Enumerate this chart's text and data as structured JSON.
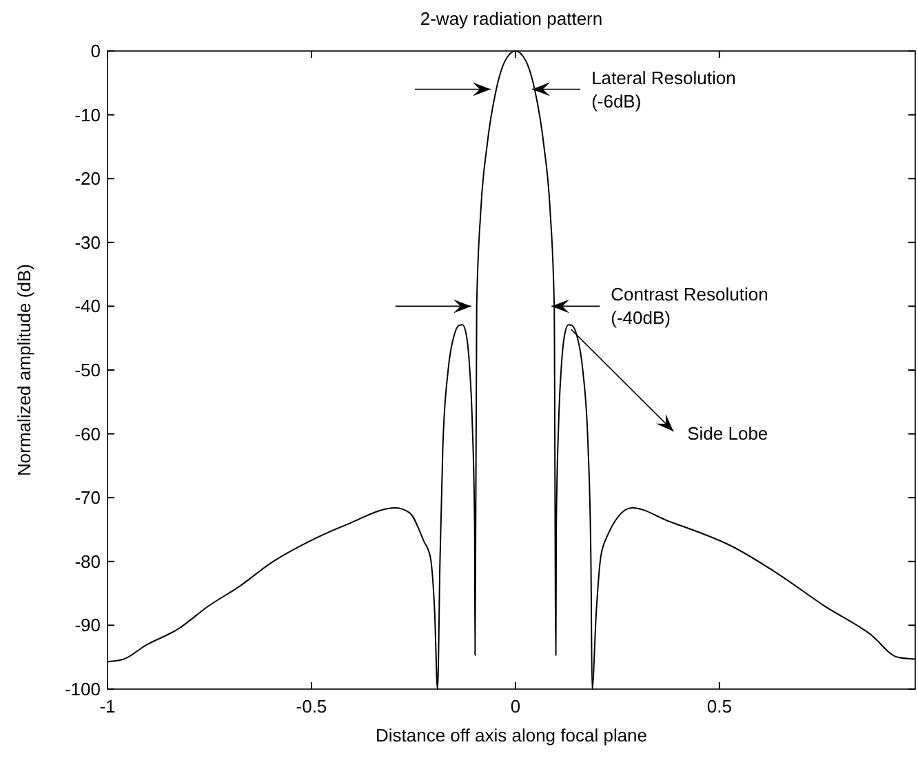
{
  "chart_data": {
    "type": "line",
    "title": "2-way radiation pattern",
    "xlabel": "Distance off axis along focal plane",
    "ylabel": "Normalized amplitude (dB)",
    "xlim": [
      -1,
      0.98
    ],
    "ylim": [
      -100,
      0
    ],
    "xticks": [
      -1,
      -0.5,
      0,
      0.5
    ],
    "yticks": [
      -100,
      -90,
      -80,
      -70,
      -60,
      -50,
      -40,
      -30,
      -20,
      -10,
      0
    ],
    "grid": false,
    "marker": "none",
    "line_style": "solid",
    "series": [
      {
        "color": "#000000",
        "x": [
          -1,
          -0.96,
          -0.908,
          -0.825,
          -0.755,
          -0.672,
          -0.601,
          -0.507,
          -0.413,
          -0.294,
          -0.259,
          -0.224,
          -0.209,
          -0.198,
          -0.191,
          -0.185,
          -0.178,
          -0.165,
          -0.15,
          -0.138,
          -0.13,
          -0.122,
          -0.113,
          -0.106,
          -0.1,
          -0.099,
          -0.095,
          -0.085,
          -0.07,
          -0.047,
          -0.025,
          0,
          0.025,
          0.047,
          0.07,
          0.085,
          0.095,
          0.099,
          0.1,
          0.106,
          0.113,
          0.122,
          0.13,
          0.138,
          0.15,
          0.165,
          0.178,
          0.185,
          0.188,
          0.198,
          0.208,
          0.219,
          0.286,
          0.376,
          0.533,
          0.645,
          0.758,
          0.87,
          0.937,
          0.98
        ],
        "values": [
          -95.7,
          -95.3,
          -93.2,
          -90.5,
          -87.1,
          -83.7,
          -80.3,
          -76.9,
          -74.2,
          -71.6,
          -72.4,
          -76.9,
          -79.2,
          -88,
          -100,
          -80,
          -62,
          -50,
          -44.5,
          -43,
          -42.9,
          -44,
          -49,
          -58,
          -75,
          -94.7,
          -40,
          -25,
          -15,
          -6,
          -1.5,
          0,
          -1.5,
          -6,
          -15,
          -25,
          -40,
          -94.7,
          -75,
          -58,
          -49,
          -44,
          -42.9,
          -43,
          -44.5,
          -50,
          -62,
          -80,
          -100,
          -88,
          -79.8,
          -76.9,
          -71.6,
          -73.7,
          -77.7,
          -82,
          -87,
          -91.4,
          -95,
          -95.3
        ]
      }
    ],
    "annotations": [
      "Lateral Resolution\n(-6dB)",
      "Contrast Resolution\n(-40dB)",
      {
        "text": "Side Lobe",
        "x": 0.13,
        "y": -43
      }
    ]
  }
}
